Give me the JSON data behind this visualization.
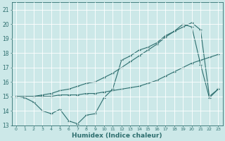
{
  "xlabel": "Humidex (Indice chaleur)",
  "ylabel": "",
  "xlim": [
    -0.5,
    23.5
  ],
  "ylim": [
    13,
    21.5
  ],
  "yticks": [
    13,
    14,
    15,
    16,
    17,
    18,
    19,
    20,
    21
  ],
  "xticks": [
    0,
    1,
    2,
    3,
    4,
    5,
    6,
    7,
    8,
    9,
    10,
    11,
    12,
    13,
    14,
    15,
    16,
    17,
    18,
    19,
    20,
    21,
    22,
    23
  ],
  "bg_color": "#cce8e8",
  "grid_color": "#ffffff",
  "line_color": "#2d6e6e",
  "series1": [
    15.0,
    14.9,
    14.6,
    14.0,
    13.8,
    14.1,
    13.3,
    13.1,
    13.7,
    13.8,
    14.9,
    15.5,
    17.5,
    17.8,
    18.2,
    18.4,
    18.7,
    19.2,
    19.5,
    20.0,
    19.8,
    17.2,
    14.9,
    15.5
  ],
  "series2": [
    15.0,
    15.0,
    15.0,
    15.0,
    15.0,
    15.1,
    15.1,
    15.1,
    15.2,
    15.2,
    15.3,
    15.4,
    15.5,
    15.6,
    15.7,
    15.9,
    16.1,
    16.4,
    16.7,
    17.0,
    17.3,
    17.5,
    17.7,
    17.9
  ],
  "series3": [
    15.0,
    15.0,
    15.0,
    15.1,
    15.2,
    15.4,
    15.5,
    15.7,
    15.9,
    16.0,
    16.3,
    16.6,
    17.0,
    17.4,
    17.8,
    18.2,
    18.6,
    19.1,
    19.5,
    19.8,
    20.1,
    19.6,
    15.0,
    15.5
  ]
}
